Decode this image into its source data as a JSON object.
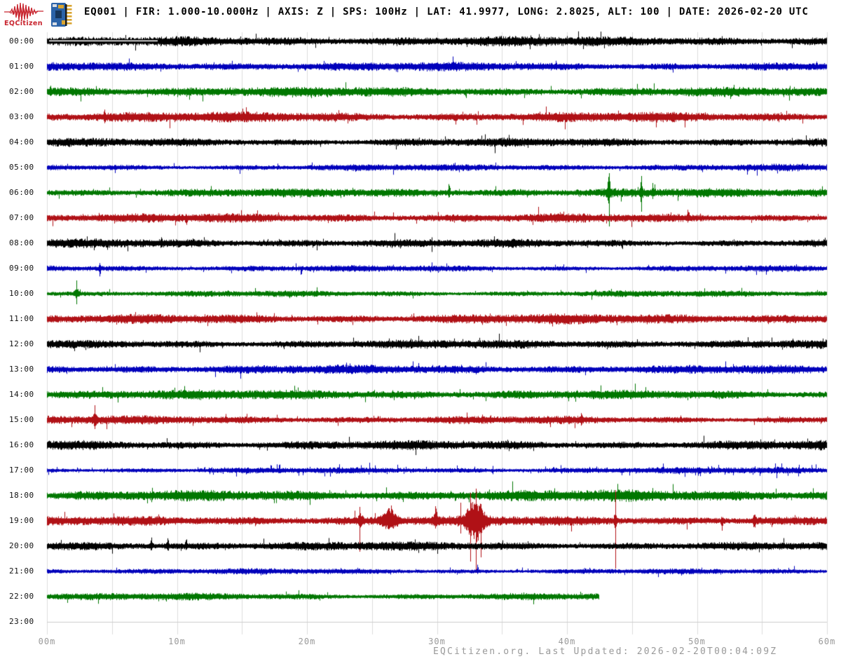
{
  "header": {
    "logo_text": "EQCitizen",
    "title": "EQ001 | FIR: 1.000-10.000Hz | AXIS: Z | SPS: 100Hz | LAT: 41.9977, LONG: 2.8025, ALT: 100 | DATE: 2026-02-20 UTC"
  },
  "footer": {
    "text": "EQCitizen.org. Last Updated: 2026-02-20T00:04:09Z"
  },
  "colors": {
    "logo_red": "#C8242E",
    "grid": "#DDDDDD",
    "flat_row": "#CCCCCC",
    "axis_label": "#999999",
    "trace_black": "#000000",
    "trace_blue": "#0000BB",
    "trace_green": "#007700",
    "trace_red": "#B01116",
    "chip_blue": "#2B63A8",
    "chip_gold": "#D9A430"
  },
  "x_axis": {
    "tick_labels": [
      "00m",
      "10m",
      "20m",
      "30m",
      "40m",
      "50m",
      "60m"
    ],
    "minutes_total": 60,
    "minor_gridline_every_min": 5
  },
  "y_axis": {
    "hour_labels": [
      "00:00",
      "01:00",
      "02:00",
      "03:00",
      "04:00",
      "05:00",
      "06:00",
      "07:00",
      "08:00",
      "09:00",
      "10:00",
      "11:00",
      "12:00",
      "13:00",
      "14:00",
      "15:00",
      "16:00",
      "17:00",
      "18:00",
      "19:00",
      "20:00",
      "21:00",
      "22:00",
      "23:00"
    ]
  },
  "chart_data": {
    "type": "line",
    "variant": "helicorder-24h-seismogram",
    "minutes_per_row": 60,
    "rows": [
      {
        "hour": "00:00",
        "color": "#000000",
        "amp": 5.5,
        "end_min": 60,
        "gap_overlay_min": [
          0.15,
          8.5
        ],
        "events": [],
        "lines": []
      },
      {
        "hour": "01:00",
        "color": "#0000BB",
        "amp": 5,
        "end_min": 60,
        "events": [],
        "lines": []
      },
      {
        "hour": "02:00",
        "color": "#007700",
        "amp": 6,
        "end_min": 60,
        "events": [
          {
            "m": 0.25,
            "up": 9,
            "dn": 4,
            "w": 0.06
          }
        ],
        "lines": []
      },
      {
        "hour": "03:00",
        "color": "#B01116",
        "amp": 6.5,
        "end_min": 60,
        "events": [
          {
            "m": 4.4,
            "up": 8,
            "dn": 5,
            "w": 0.06
          }
        ],
        "lines": []
      },
      {
        "hour": "04:00",
        "color": "#000000",
        "amp": 5.5,
        "end_min": 60,
        "events": [],
        "lines": []
      },
      {
        "hour": "05:00",
        "color": "#0000BB",
        "amp": 4,
        "end_min": 60,
        "events": [],
        "lines": []
      },
      {
        "hour": "06:00",
        "color": "#007700",
        "amp": 5,
        "end_min": 60,
        "events": [
          {
            "m": 30.9,
            "up": 16,
            "dn": 5,
            "w": 0.07
          },
          {
            "m": 43.2,
            "up": 20,
            "dn": 9,
            "w": 0.12
          },
          {
            "m": 45.7,
            "up": 16,
            "dn": 7,
            "w": 0.1
          },
          {
            "m": 46.6,
            "up": 10,
            "dn": 4,
            "w": 0.08
          }
        ],
        "lines": [
          {
            "m": 43.25,
            "up": 28,
            "dn": 48
          },
          {
            "m": 45.72,
            "up": 24,
            "dn": 27
          },
          {
            "m": 46.55,
            "up": 14,
            "dn": 6
          }
        ]
      },
      {
        "hour": "07:00",
        "color": "#B01116",
        "amp": 5,
        "end_min": 60,
        "events": [
          {
            "m": 10.7,
            "up": 4,
            "dn": 9,
            "w": 0.06
          },
          {
            "m": 49.3,
            "up": 9,
            "dn": 4,
            "w": 0.06
          }
        ],
        "lines": []
      },
      {
        "hour": "08:00",
        "color": "#000000",
        "amp": 5,
        "end_min": 60,
        "events": [
          {
            "m": 8.8,
            "up": 8,
            "dn": 4,
            "w": 0.06
          }
        ],
        "lines": []
      },
      {
        "hour": "09:00",
        "color": "#0000BB",
        "amp": 4,
        "end_min": 60,
        "events": [
          {
            "m": 4.05,
            "up": 6,
            "dn": 10,
            "w": 0.07
          }
        ],
        "lines": []
      },
      {
        "hour": "10:00",
        "color": "#007700",
        "amp": 4,
        "end_min": 60,
        "events": [
          {
            "m": 2.26,
            "up": 6,
            "dn": 5,
            "w": 0.18
          }
        ],
        "lines": [
          {
            "m": 2.26,
            "up": 19,
            "dn": 15
          }
        ]
      },
      {
        "hour": "11:00",
        "color": "#B01116",
        "amp": 6,
        "end_min": 60,
        "events": [],
        "lines": []
      },
      {
        "hour": "12:00",
        "color": "#000000",
        "amp": 5,
        "end_min": 60,
        "events": [],
        "lines": []
      },
      {
        "hour": "13:00",
        "color": "#0000BB",
        "amp": 5,
        "end_min": 60,
        "events": [],
        "lines": []
      },
      {
        "hour": "14:00",
        "color": "#007700",
        "amp": 5.5,
        "end_min": 60,
        "events": [],
        "lines": []
      },
      {
        "hour": "15:00",
        "color": "#B01116",
        "amp": 5,
        "end_min": 60,
        "events": [
          {
            "m": 3.67,
            "up": 6,
            "dn": 5,
            "w": 0.2
          },
          {
            "m": 41.1,
            "up": 9,
            "dn": 4,
            "w": 0.07
          }
        ],
        "lines": [
          {
            "m": 3.67,
            "up": 21,
            "dn": 13
          }
        ]
      },
      {
        "hour": "16:00",
        "color": "#000000",
        "amp": 6,
        "end_min": 60,
        "events": [],
        "lines": []
      },
      {
        "hour": "17:00",
        "color": "#0000BB",
        "amp": 3.8,
        "end_min": 60,
        "spiky": 0.05,
        "events": [],
        "lines": []
      },
      {
        "hour": "18:00",
        "color": "#007700",
        "amp": 6.5,
        "end_min": 60,
        "events": [],
        "lines": []
      },
      {
        "hour": "19:00",
        "color": "#B01116",
        "amp": 5.5,
        "end_min": 60,
        "events": [
          {
            "m": 24.1,
            "up": 8,
            "dn": 8,
            "w": 0.15
          },
          {
            "m": 26.3,
            "up": 15,
            "dn": 11,
            "w": 0.55
          },
          {
            "m": 29.9,
            "up": 20,
            "dn": 9,
            "w": 0.12
          },
          {
            "m": 32.9,
            "up": 28,
            "dn": 28,
            "w": 0.62
          },
          {
            "m": 43.7,
            "up": 9,
            "dn": 9,
            "w": 0.1
          },
          {
            "m": 51.9,
            "up": 4,
            "dn": 11,
            "w": 0.08
          },
          {
            "m": 54.4,
            "up": 8,
            "dn": 8,
            "w": 0.1
          }
        ],
        "lines": [
          {
            "m": 24.05,
            "up": 20,
            "dn": 44
          },
          {
            "m": 31.8,
            "up": 26,
            "dn": 18
          },
          {
            "m": 32.55,
            "up": 40,
            "dn": 58
          },
          {
            "m": 33.0,
            "up": 46,
            "dn": 74
          },
          {
            "m": 33.35,
            "up": 24,
            "dn": 52
          },
          {
            "m": 43.7,
            "up": 44,
            "dn": 68
          }
        ]
      },
      {
        "hour": "20:00",
        "color": "#000000",
        "amp": 5,
        "end_min": 60,
        "events": [
          {
            "m": 8.0,
            "up": 15,
            "dn": 5,
            "w": 0.07
          },
          {
            "m": 9.3,
            "up": 11,
            "dn": 4,
            "w": 0.07
          },
          {
            "m": 10.7,
            "up": 8,
            "dn": 4,
            "w": 0.06
          }
        ],
        "lines": []
      },
      {
        "hour": "21:00",
        "color": "#0000BB",
        "amp": 3.5,
        "end_min": 60,
        "events": [
          {
            "m": 33.1,
            "up": 8,
            "dn": 3,
            "w": 0.06
          }
        ],
        "lines": []
      },
      {
        "hour": "22:00",
        "color": "#007700",
        "amp": 4.5,
        "end_min": 42.5,
        "events": [],
        "lines": []
      },
      {
        "hour": "23:00",
        "color": "#B01116",
        "amp": 0,
        "end_min": 0,
        "flat": true,
        "events": [],
        "lines": []
      }
    ]
  }
}
